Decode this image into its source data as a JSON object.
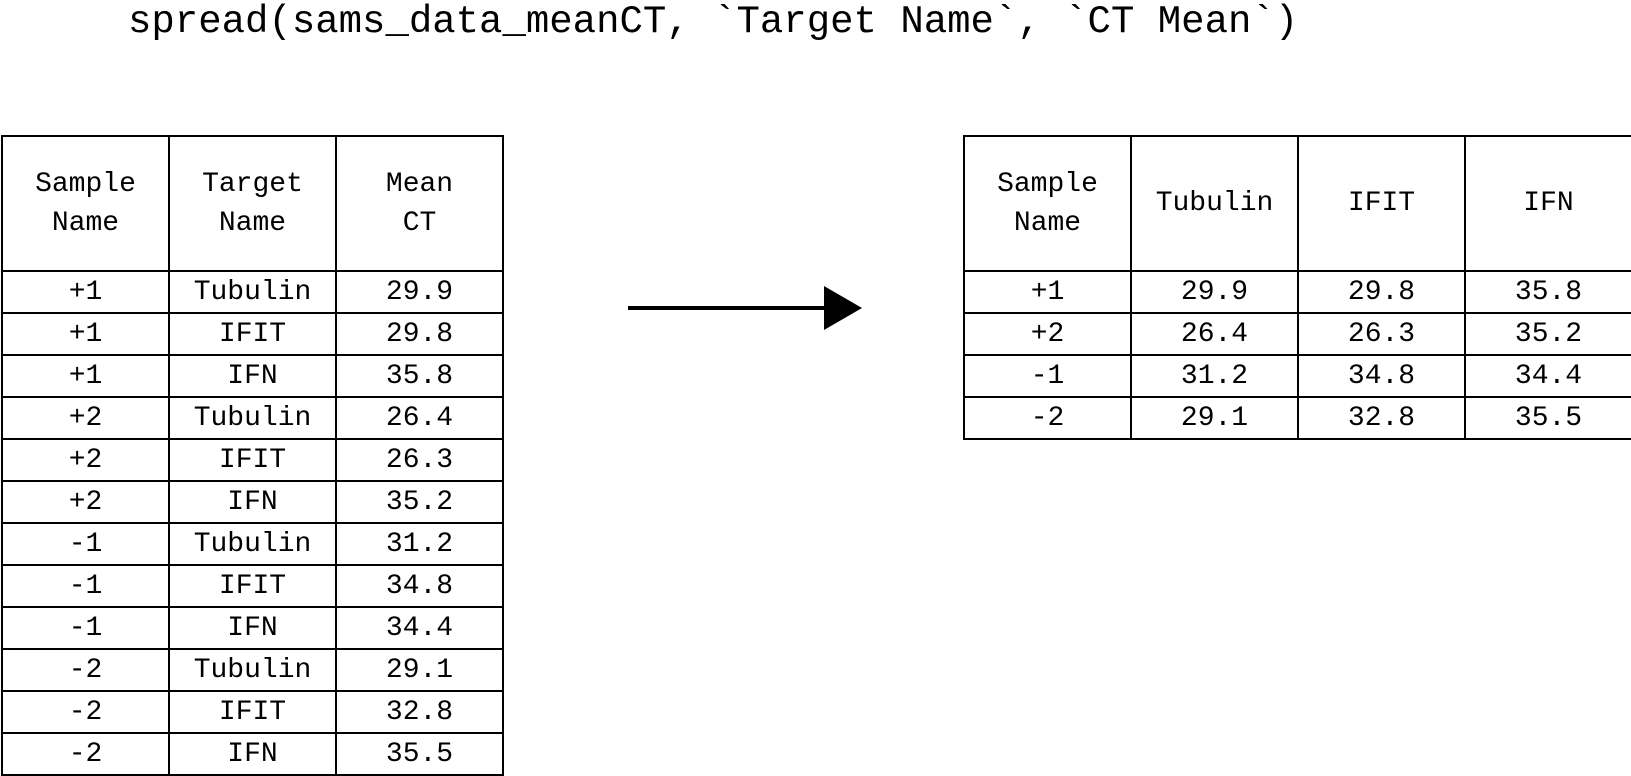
{
  "code_line": "spread(sams_data_meanCT, `Target Name`, `CT Mean`)",
  "long_table": {
    "headers": [
      "Sample\nName",
      "Target\nName",
      "Mean\nCT"
    ],
    "rows": [
      [
        "+1",
        "Tubulin",
        "29.9"
      ],
      [
        "+1",
        "IFIT",
        "29.8"
      ],
      [
        "+1",
        "IFN",
        "35.8"
      ],
      [
        "+2",
        "Tubulin",
        "26.4"
      ],
      [
        "+2",
        "IFIT",
        "26.3"
      ],
      [
        "+2",
        "IFN",
        "35.2"
      ],
      [
        "-1",
        "Tubulin",
        "31.2"
      ],
      [
        "-1",
        "IFIT",
        "34.8"
      ],
      [
        "-1",
        "IFN",
        "34.4"
      ],
      [
        "-2",
        "Tubulin",
        "29.1"
      ],
      [
        "-2",
        "IFIT",
        "32.8"
      ],
      [
        "-2",
        "IFN",
        "35.5"
      ]
    ]
  },
  "wide_table": {
    "headers": [
      "Sample\nName",
      "Tubulin",
      "IFIT",
      "IFN"
    ],
    "rows": [
      [
        "+1",
        "29.9",
        "29.8",
        "35.8"
      ],
      [
        "+2",
        "26.4",
        "26.3",
        "35.2"
      ],
      [
        "-1",
        "31.2",
        "34.8",
        "34.4"
      ],
      [
        "-2",
        "29.1",
        "32.8",
        "35.5"
      ]
    ]
  },
  "arrow_icon": "right-arrow-icon"
}
